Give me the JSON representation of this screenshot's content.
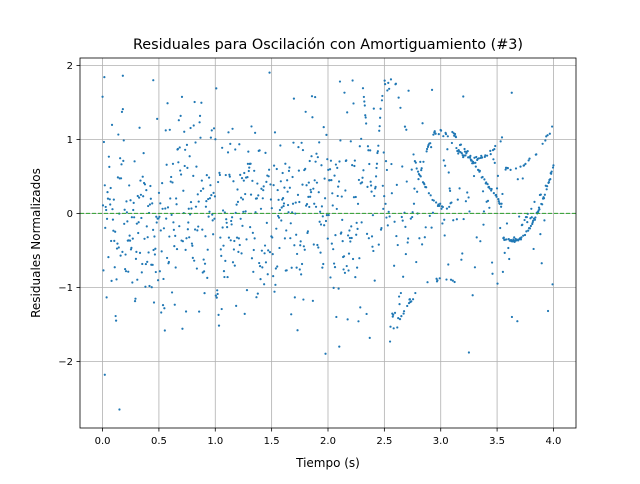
{
  "chart_data": {
    "type": "scatter",
    "title": "Residuales para Oscilación con Amortiguamiento (#3)",
    "xlabel": "Tiempo (s)",
    "ylabel": "Residuales Normalizados",
    "xlim": [
      -0.2,
      4.2
    ],
    "ylim": [
      -2.9,
      2.1
    ],
    "x_ticks": [
      0.0,
      0.5,
      1.0,
      1.5,
      2.0,
      2.5,
      3.0,
      3.5,
      4.0
    ],
    "x_tick_labels": [
      "0.0",
      "0.5",
      "1.0",
      "1.5",
      "2.0",
      "2.5",
      "3.0",
      "3.5",
      "4.0"
    ],
    "y_ticks": [
      -2,
      -1,
      0,
      1,
      2
    ],
    "y_tick_labels": [
      "−2",
      "−1",
      "0",
      "1",
      "2"
    ],
    "grid": true,
    "reference_line": {
      "y": 0,
      "style": "dashed",
      "color": "#2ca02c"
    },
    "point_color": "#1f77b4",
    "n_points": 1000,
    "x_range": [
      0.0,
      4.0
    ],
    "random_noise_region": {
      "x": [
        0.0,
        2.3
      ],
      "y_spread": [
        -1.6,
        1.6
      ]
    },
    "outliers": [
      {
        "x": 0.02,
        "y": -2.18
      },
      {
        "x": 0.15,
        "y": -2.65
      },
      {
        "x": 0.18,
        "y": 1.86
      },
      {
        "x": 0.45,
        "y": 1.8
      },
      {
        "x": 2.1,
        "y": -1.8
      },
      {
        "x": 3.2,
        "y": 1.58
      },
      {
        "x": 3.25,
        "y": -1.88
      },
      {
        "x": 3.63,
        "y": 1.63
      }
    ],
    "structured_bands": [
      {
        "x": [
          2.3,
          2.5
        ],
        "y": [
          -1.0,
          1.0
        ],
        "minimum": {
          "x": 2.4,
          "y": -0.02
        }
      },
      {
        "x": [
          2.55,
          3.0
        ],
        "y": [
          -1.0,
          1.15
        ]
      },
      {
        "x": [
          2.9,
          3.1
        ],
        "y": [
          0.1,
          1.1
        ]
      },
      {
        "x": [
          3.1,
          3.6
        ],
        "y": [
          -0.35,
          1.1
        ]
      },
      {
        "x": [
          3.6,
          4.0
        ],
        "y": [
          -0.9,
          0.55
        ],
        "minimum": {
          "x": 3.63,
          "y": -0.38
        }
      },
      {
        "x": [
          3.5,
          3.75
        ],
        "y": [
          0.6,
          0.8
        ],
        "minimum": {
          "x": 3.63,
          "y": 0.6
        }
      }
    ]
  }
}
